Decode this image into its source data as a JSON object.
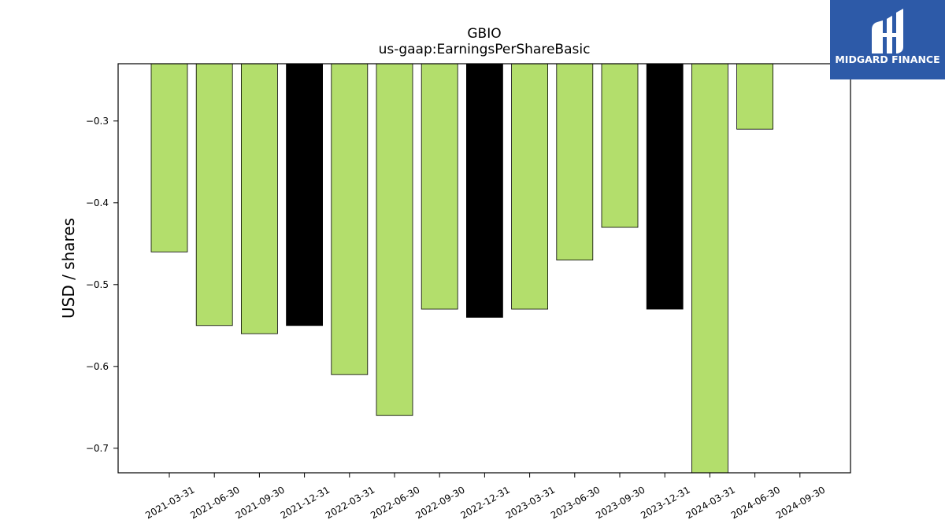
{
  "chart_data": {
    "type": "bar",
    "title": "GBIO",
    "subtitle": "us-gaap:EarningsPerShareBasic",
    "xlabel": "",
    "ylabel": "USD / shares",
    "ylim": [
      -0.73,
      -0.23
    ],
    "yticks": [
      -0.3,
      -0.4,
      -0.5,
      -0.6,
      -0.7
    ],
    "ytick_labels": [
      "−0.3",
      "−0.4",
      "−0.5",
      "−0.6",
      "−0.7"
    ],
    "categories": [
      "2021-03-31",
      "2021-06-30",
      "2021-09-30",
      "2021-12-31",
      "2022-03-31",
      "2022-06-30",
      "2022-09-30",
      "2022-12-31",
      "2023-03-31",
      "2023-06-30",
      "2023-09-30",
      "2023-12-31",
      "2024-03-31",
      "2024-06-30",
      "2024-09-30"
    ],
    "values": [
      -0.46,
      -0.55,
      -0.56,
      -0.55,
      -0.61,
      -0.66,
      -0.53,
      -0.54,
      -0.53,
      -0.47,
      -0.43,
      -0.53,
      -0.75,
      -0.31,
      null
    ],
    "bar_colors": [
      "#b3de6c",
      "#b3de6c",
      "#b3de6c",
      "#000000",
      "#b3de6c",
      "#b3de6c",
      "#b3de6c",
      "#000000",
      "#b3de6c",
      "#b3de6c",
      "#b3de6c",
      "#000000",
      "#b3de6c",
      "#b3de6c",
      "#b3de6c"
    ],
    "grid": false,
    "legend": "none"
  },
  "logo": {
    "text": "MIDGARD FINANCE",
    "background": "#2d5aa8"
  }
}
